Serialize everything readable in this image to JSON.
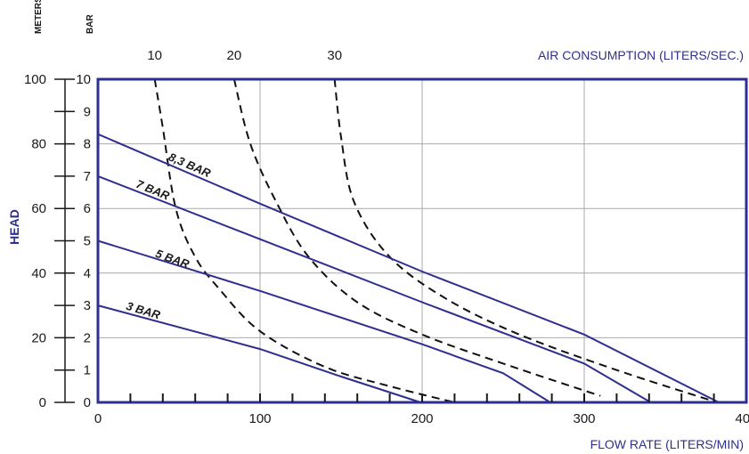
{
  "colors": {
    "navy": "#2e2f8f",
    "grid": "#a9a9a9",
    "text": "#1a1a1a",
    "dashed": "#111111"
  },
  "chart_data": {
    "type": "line",
    "xlabel": "FLOW RATE (LITERS/MIN)",
    "ylabel": "HEAD",
    "top_axis_label": "AIR CONSUMPTION (LITERS/SEC.)",
    "unit_meters": "METERS",
    "unit_bar": "BAR",
    "xlim": [
      0,
      400
    ],
    "ylim_meters": [
      0,
      100
    ],
    "ylim_bar": [
      0,
      10
    ],
    "x_ticks": [
      "0",
      "100",
      "200",
      "300",
      "400"
    ],
    "y_ticks_meters": [
      "0",
      "20",
      "40",
      "60",
      "80",
      "100"
    ],
    "y_ticks_bar": [
      "0",
      "1",
      "2",
      "3",
      "4",
      "5",
      "6",
      "7",
      "8",
      "9",
      "10"
    ],
    "top_ticks": [
      "10",
      "20",
      "30"
    ],
    "grid": true,
    "series": [
      {
        "name": "8,3 BAR",
        "points": [
          [
            0,
            83
          ],
          [
            100,
            61.5
          ],
          [
            200,
            40.5
          ],
          [
            300,
            21
          ],
          [
            383,
            0
          ]
        ]
      },
      {
        "name": "7 BAR",
        "points": [
          [
            0,
            70
          ],
          [
            100,
            50.5
          ],
          [
            200,
            31
          ],
          [
            300,
            12
          ],
          [
            341,
            0
          ]
        ]
      },
      {
        "name": "5 BAR",
        "points": [
          [
            0,
            50
          ],
          [
            100,
            34.5
          ],
          [
            200,
            18
          ],
          [
            250,
            9
          ],
          [
            279,
            0
          ]
        ]
      },
      {
        "name": "3 BAR",
        "points": [
          [
            0,
            30
          ],
          [
            100,
            16.5
          ],
          [
            150,
            8
          ],
          [
            199,
            0
          ]
        ]
      }
    ],
    "air_consumption_curves": [
      {
        "value": "10",
        "points": [
          [
            35,
            100
          ],
          [
            40,
            85
          ],
          [
            48,
            60
          ],
          [
            60,
            45
          ],
          [
            75,
            35
          ],
          [
            100,
            22
          ],
          [
            140,
            11
          ],
          [
            180,
            5
          ],
          [
            220,
            0
          ]
        ]
      },
      {
        "value": "20",
        "points": [
          [
            84,
            100
          ],
          [
            94,
            80
          ],
          [
            110,
            62
          ],
          [
            130,
            45
          ],
          [
            160,
            31
          ],
          [
            200,
            21
          ],
          [
            250,
            12
          ],
          [
            310,
            2
          ]
        ]
      },
      {
        "value": "30",
        "points": [
          [
            146,
            100
          ],
          [
            150,
            82
          ],
          [
            158,
            62
          ],
          [
            180,
            45
          ],
          [
            215,
            32
          ],
          [
            260,
            21
          ],
          [
            320,
            10
          ],
          [
            382,
            0
          ]
        ]
      }
    ]
  }
}
